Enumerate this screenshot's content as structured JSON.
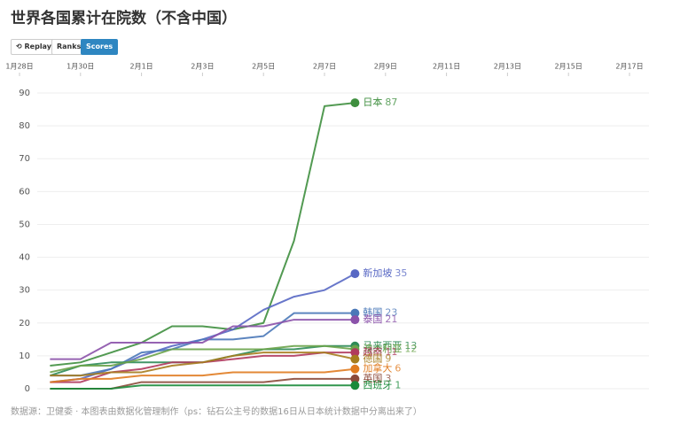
{
  "title": "世界各国累计在院数（不含中国）",
  "controls": {
    "replay": "Replay",
    "ranks": "Ranks",
    "scores": "Scores"
  },
  "source": "数据源：卫健委 · 本图表由数据化管理制作（ps：钻石公主号的数据16日从日本统计数据中分离出来了）",
  "chart_data": {
    "type": "line",
    "x": [
      "1月29日",
      "1月30日",
      "1月31日",
      "2月1日",
      "2月2日",
      "2月3日",
      "2月4日",
      "2月5日",
      "2月6日",
      "2月7日",
      "2月8日"
    ],
    "xlim": [
      "1月28日",
      "2月18日"
    ],
    "xticks": [
      "1月28日",
      "1月30日",
      "2月1日",
      "2月3日",
      "2月5日",
      "2月7日",
      "2月9日",
      "2月11日",
      "2月13日",
      "2月15日",
      "2月17日"
    ],
    "ylim": [
      0,
      90
    ],
    "yticks": [
      0,
      10,
      20,
      30,
      40,
      50,
      60,
      70,
      80,
      90
    ],
    "grid": true,
    "series": [
      {
        "name": "日本",
        "color": "#3f8f3f",
        "values": [
          7,
          8,
          11,
          14,
          19,
          19,
          18,
          20,
          45,
          86,
          87
        ]
      },
      {
        "name": "新加坡",
        "color": "#5868c4",
        "values": [
          2,
          3,
          6,
          10,
          13,
          15,
          18,
          24,
          28,
          30,
          35
        ]
      },
      {
        "name": "韩国",
        "color": "#4a78b8",
        "values": [
          4,
          4,
          6,
          11,
          12,
          15,
          15,
          16,
          23,
          23,
          23
        ]
      },
      {
        "name": "泰国",
        "color": "#8b52aa",
        "values": [
          9,
          9,
          14,
          14,
          14,
          14,
          19,
          19,
          21,
          21,
          21
        ]
      },
      {
        "name": "马来西亚",
        "color": "#2e8b57",
        "values": [
          4,
          7,
          8,
          8,
          8,
          8,
          10,
          12,
          12,
          13,
          13
        ]
      },
      {
        "name": "澳大利亚",
        "color": "#6aa34a",
        "values": [
          5,
          7,
          7,
          9,
          12,
          12,
          12,
          12,
          13,
          13,
          12
        ]
      },
      {
        "name": "越南",
        "color": "#b03a5e",
        "values": [
          2,
          2,
          5,
          6,
          8,
          8,
          9,
          10,
          10,
          11,
          11
        ]
      },
      {
        "name": "德国",
        "color": "#a67c1e",
        "values": [
          4,
          4,
          5,
          5,
          7,
          8,
          10,
          11,
          11,
          11,
          9
        ]
      },
      {
        "name": "加拿大",
        "color": "#e07b20",
        "values": [
          2,
          3,
          3,
          4,
          4,
          4,
          5,
          5,
          5,
          5,
          6
        ]
      },
      {
        "name": "英国",
        "color": "#8b4a3a",
        "values": [
          0,
          0,
          0,
          2,
          2,
          2,
          2,
          2,
          3,
          3,
          3
        ]
      },
      {
        "name": "西班牙",
        "color": "#1a8a3a",
        "values": [
          0,
          0,
          0,
          1,
          1,
          1,
          1,
          1,
          1,
          1,
          1
        ]
      }
    ]
  }
}
